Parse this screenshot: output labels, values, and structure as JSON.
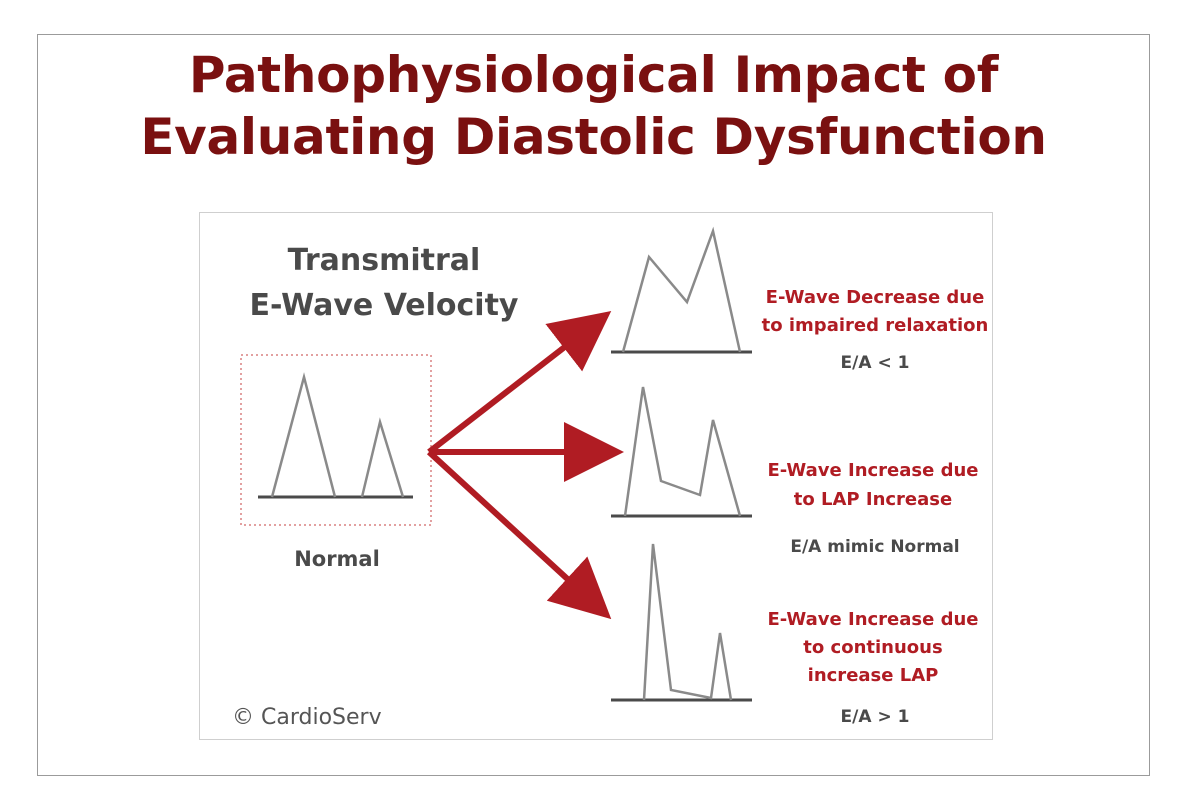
{
  "title": {
    "line1": "Pathophysiological Impact of",
    "line2": "Evaluating Diastolic Dysfunction"
  },
  "heading": {
    "line1": "Transmitral",
    "line2": "E-Wave Velocity"
  },
  "normal": {
    "label": "Normal"
  },
  "branches": [
    {
      "label_lines": [
        "E-Wave Decrease due",
        "to impaired relaxation"
      ],
      "ratio": "E/A < 1"
    },
    {
      "label_lines": [
        "E-Wave Increase due",
        "to LAP Increase"
      ],
      "ratio": "E/A mimic Normal"
    },
    {
      "label_lines": [
        "E-Wave Increase due",
        "to continuous",
        "increase LAP"
      ],
      "ratio": "E/A > 1"
    }
  ],
  "copyright": "© CardioServ",
  "colors": {
    "title": "#7a1010",
    "arrow": "#b01c23",
    "label_red": "#b01c23",
    "wave_line": "#8a8a8a",
    "baseline": "#4a4a4a",
    "dotted_box": "#d98080"
  }
}
